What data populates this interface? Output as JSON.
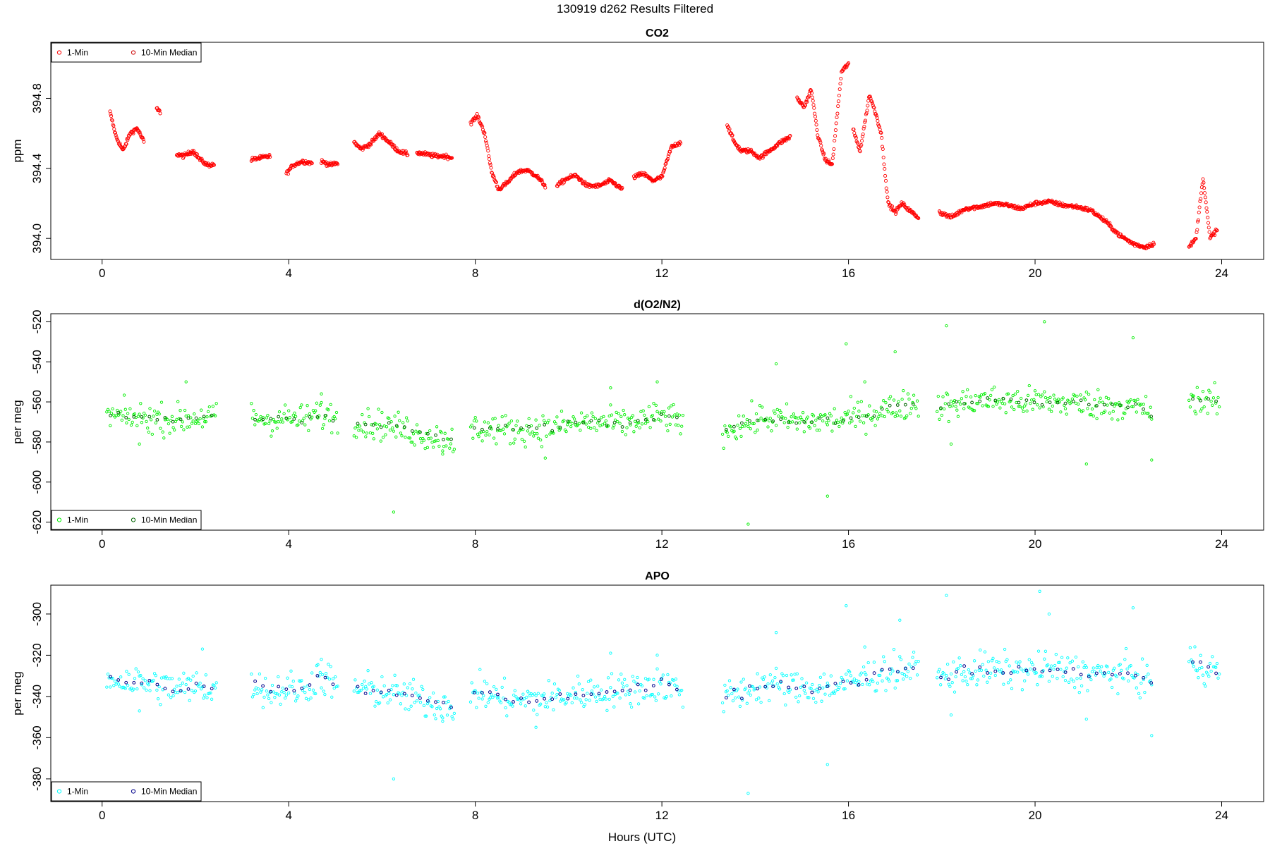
{
  "figure": {
    "title": "130919   d262   Results Filtered",
    "xlabel": "Hours (UTC)"
  },
  "chart_data": [
    {
      "type": "scatter",
      "title": "CO2",
      "ylabel": "ppm",
      "xlim": [
        -1.1,
        24.9
      ],
      "ylim": [
        393.88,
        395.12
      ],
      "xticks": [
        0,
        4,
        8,
        12,
        16,
        20,
        24
      ],
      "yticks": [
        394.0,
        394.4,
        394.8
      ],
      "ytick_labels": [
        "394.0",
        "394.4",
        "394.8"
      ],
      "legend": {
        "position": "top-left",
        "entries": [
          "1-Min",
          "10-Min Median"
        ]
      },
      "series": [
        {
          "name": "1-Min",
          "color": "#ff0000",
          "segments": [
            {
              "x": [
                0.17,
                0.3,
                0.45,
                0.6,
                0.75,
                0.9
              ],
              "y": [
                394.72,
                394.58,
                394.5,
                394.6,
                394.63,
                394.55
              ]
            },
            {
              "x": [
                1.17,
                1.25
              ],
              "y": [
                394.74,
                394.72
              ]
            },
            {
              "x": [
                1.6,
                1.75,
                1.95,
                2.1,
                2.25,
                2.4
              ],
              "y": [
                394.48,
                394.47,
                394.5,
                394.45,
                394.42,
                394.42
              ]
            },
            {
              "x": [
                3.2,
                3.4,
                3.6
              ],
              "y": [
                394.45,
                394.46,
                394.47
              ]
            },
            {
              "x": [
                3.95,
                4.1,
                4.3,
                4.5
              ],
              "y": [
                394.37,
                394.42,
                394.44,
                394.43
              ]
            },
            {
              "x": [
                4.7,
                4.9,
                5.05
              ],
              "y": [
                394.44,
                394.42,
                394.43
              ]
            },
            {
              "x": [
                5.4,
                5.55,
                5.75,
                5.95,
                6.15,
                6.35,
                6.55
              ],
              "y": [
                394.55,
                394.51,
                394.54,
                394.6,
                394.55,
                394.5,
                394.48
              ]
            },
            {
              "x": [
                6.75,
                6.95,
                7.15,
                7.35,
                7.5
              ],
              "y": [
                394.49,
                394.48,
                394.47,
                394.47,
                394.46
              ]
            },
            {
              "x": [
                7.9,
                8.05,
                8.2,
                8.35,
                8.5,
                8.7,
                8.9,
                9.1,
                9.3,
                9.5
              ],
              "y": [
                394.66,
                394.7,
                394.6,
                394.38,
                394.28,
                394.32,
                394.38,
                394.39,
                394.36,
                394.3
              ]
            },
            {
              "x": [
                9.75,
                9.95,
                10.15,
                10.4,
                10.65,
                10.9,
                11.15
              ],
              "y": [
                394.3,
                394.34,
                394.36,
                394.3,
                394.3,
                394.33,
                394.28
              ]
            },
            {
              "x": [
                11.4,
                11.6,
                11.8,
                12.0,
                12.2,
                12.4
              ],
              "y": [
                394.35,
                394.37,
                394.33,
                394.35,
                394.52,
                394.55
              ]
            },
            {
              "x": [
                13.4,
                13.55,
                13.7,
                13.9,
                14.1,
                14.3,
                14.55,
                14.75
              ],
              "y": [
                394.65,
                394.55,
                394.5,
                394.5,
                394.46,
                394.5,
                394.55,
                394.58
              ]
            },
            {
              "x": [
                14.9,
                15.05,
                15.2,
                15.35,
                15.5,
                15.65,
                15.85,
                16.0
              ],
              "y": [
                394.8,
                394.75,
                394.85,
                394.58,
                394.45,
                394.42,
                394.95,
                395.0
              ]
            },
            {
              "x": [
                16.1,
                16.25,
                16.45,
                16.6,
                16.7,
                16.85,
                17.0,
                17.15,
                17.35,
                17.5
              ],
              "y": [
                394.62,
                394.5,
                394.82,
                394.7,
                394.6,
                394.2,
                394.15,
                394.2,
                394.15,
                394.12
              ]
            },
            {
              "x": [
                17.95,
                18.2,
                18.5,
                18.8,
                19.1,
                19.4,
                19.7,
                20.0,
                20.3,
                20.6,
                20.9,
                21.2,
                21.5,
                21.8,
                22.1,
                22.35,
                22.55
              ],
              "y": [
                394.15,
                394.12,
                394.17,
                394.18,
                394.2,
                394.19,
                394.17,
                394.2,
                394.21,
                394.19,
                394.18,
                394.16,
                394.1,
                394.02,
                393.97,
                393.95,
                393.97
              ]
            },
            {
              "x": [
                23.3,
                23.45,
                23.6,
                23.75,
                23.9
              ],
              "y": [
                393.95,
                394.0,
                394.35,
                394.0,
                394.05
              ]
            }
          ]
        },
        {
          "name": "10-Min Median",
          "color": "#cc0000",
          "segments": []
        }
      ]
    },
    {
      "type": "scatter",
      "title": "d(O2/N2)",
      "ylabel": "per meg",
      "xlim": [
        -1.1,
        24.9
      ],
      "ylim": [
        -624,
        -516
      ],
      "xticks": [
        0,
        4,
        8,
        12,
        16,
        20,
        24
      ],
      "yticks": [
        -620,
        -600,
        -580,
        -560,
        -540,
        -520
      ],
      "ytick_labels": [
        "-620",
        "-600",
        "-580",
        "-560",
        "-540",
        "-520"
      ],
      "legend": {
        "position": "bottom-left",
        "entries": [
          "1-Min",
          "10-Min Median"
        ]
      },
      "series": [
        {
          "name": "1-Min",
          "color": "#00ee00",
          "segments": [
            {
              "x": [
                0.1,
                1.0,
                1.55,
                2.45
              ],
              "y": [
                -567,
                -568,
                -569,
                -567
              ]
            },
            {
              "x": [
                3.2,
                3.6,
                3.95,
                4.35,
                4.6,
                5.05
              ],
              "y": [
                -567,
                -569,
                -568,
                -569,
                -566,
                -568
              ]
            },
            {
              "x": [
                5.4,
                6.2,
                7.0,
                7.55
              ],
              "y": [
                -570,
                -572,
                -577,
                -579
              ]
            },
            {
              "x": [
                7.9,
                8.8,
                9.6,
                10.4,
                11.2,
                12.0,
                12.45
              ],
              "y": [
                -573,
                -574,
                -573,
                -570,
                -571,
                -567,
                -570
              ]
            },
            {
              "x": [
                13.3,
                14.2,
                15.0,
                15.8,
                16.6,
                17.5
              ],
              "y": [
                -574,
                -568,
                -570,
                -569,
                -565,
                -560
              ]
            },
            {
              "x": [
                17.9,
                18.8,
                19.6,
                20.4,
                21.2,
                22.0,
                22.5
              ],
              "y": [
                -563,
                -559,
                -560,
                -560,
                -561,
                -562,
                -565
              ]
            },
            {
              "x": [
                23.3,
                23.95
              ],
              "y": [
                -558,
                -561
              ]
            }
          ],
          "outliers": {
            "x": [
              0.8,
              1.8,
              4.7,
              6.25,
              7.3,
              9.5,
              10.9,
              11.9,
              13.85,
              14.45,
              15.55,
              15.95,
              16.35,
              17.0,
              18.1,
              18.2,
              20.2,
              21.1,
              22.1,
              22.5
            ],
            "y": [
              -581,
              -550,
              -556,
              -615,
              -586,
              -588,
              -553,
              -550,
              -621,
              -541,
              -607,
              -531,
              -550,
              -535,
              -522,
              -581,
              -520,
              -591,
              -528,
              -589
            ]
          }
        },
        {
          "name": "10-Min Median",
          "color": "#006400",
          "segments": []
        }
      ]
    },
    {
      "type": "scatter",
      "title": "APO",
      "ylabel": "per meg",
      "xlim": [
        -1.1,
        24.9
      ],
      "ylim": [
        -391,
        -286
      ],
      "xticks": [
        0,
        4,
        8,
        12,
        16,
        20,
        24
      ],
      "yticks": [
        -380,
        -360,
        -340,
        -320,
        -300
      ],
      "ytick_labels": [
        "-380",
        "-360",
        "-340",
        "-320",
        "-300"
      ],
      "legend": {
        "position": "bottom-left",
        "entries": [
          "1-Min",
          "10-Min Median"
        ]
      },
      "series": [
        {
          "name": "1-Min",
          "color": "#00ffff",
          "segments": [
            {
              "x": [
                0.1,
                1.0,
                1.55,
                2.45
              ],
              "y": [
                -331,
                -334,
                -336,
                -335
              ]
            },
            {
              "x": [
                3.2,
                3.6,
                3.95,
                4.35,
                4.6,
                5.05
              ],
              "y": [
                -333,
                -338,
                -336,
                -337,
                -330,
                -334
              ]
            },
            {
              "x": [
                5.4,
                6.2,
                7.0,
                7.55
              ],
              "y": [
                -336,
                -338,
                -343,
                -344
              ]
            },
            {
              "x": [
                7.9,
                8.8,
                9.6,
                10.4,
                11.2,
                12.0,
                12.45
              ],
              "y": [
                -337,
                -342,
                -341,
                -338,
                -337,
                -334,
                -337
              ]
            },
            {
              "x": [
                13.3,
                14.2,
                15.0,
                15.8,
                16.6,
                17.5
              ],
              "y": [
                -341,
                -334,
                -336,
                -335,
                -329,
                -326
              ]
            },
            {
              "x": [
                17.9,
                18.8,
                19.6,
                20.4,
                21.2,
                22.0,
                22.5
              ],
              "y": [
                -331,
                -327,
                -328,
                -327,
                -329,
                -329,
                -333
              ]
            },
            {
              "x": [
                23.3,
                23.95
              ],
              "y": [
                -323,
                -328
              ]
            }
          ],
          "outliers": {
            "x": [
              0.8,
              2.15,
              4.7,
              6.25,
              7.3,
              9.3,
              10.9,
              11.9,
              13.85,
              14.45,
              15.55,
              15.95,
              16.35,
              17.1,
              18.1,
              18.2,
              20.1,
              20.3,
              21.1,
              22.1,
              22.5
            ],
            "y": [
              -347,
              -317,
              -322,
              -380,
              -352,
              -355,
              -319,
              -320,
              -387,
              -309,
              -373,
              -296,
              -316,
              -303,
              -291,
              -349,
              -289,
              -300,
              -351,
              -297,
              -359
            ]
          }
        },
        {
          "name": "10-Min Median",
          "color": "#00008b",
          "segments": []
        }
      ]
    }
  ]
}
